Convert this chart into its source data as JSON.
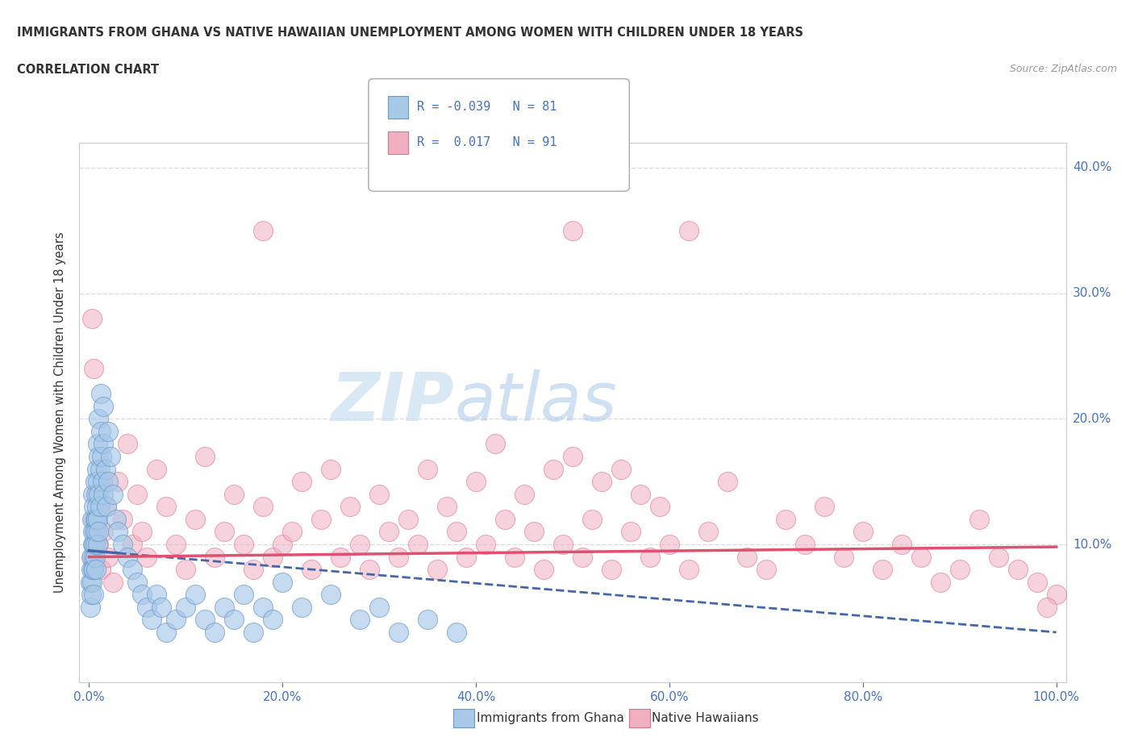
{
  "title_line1": "IMMIGRANTS FROM GHANA VS NATIVE HAWAIIAN UNEMPLOYMENT AMONG WOMEN WITH CHILDREN UNDER 18 YEARS",
  "title_line2": "CORRELATION CHART",
  "source_text": "Source: ZipAtlas.com",
  "ylabel": "Unemployment Among Women with Children Under 18 years",
  "xlim": [
    -1,
    101
  ],
  "ylim": [
    -1,
    42
  ],
  "xtick_labels": [
    "0.0%",
    "20.0%",
    "40.0%",
    "60.0%",
    "80.0%",
    "100.0%"
  ],
  "xtick_vals": [
    0,
    20,
    40,
    60,
    80,
    100
  ],
  "ytick_labels": [
    "10.0%",
    "20.0%",
    "30.0%",
    "40.0%"
  ],
  "ytick_vals": [
    10,
    20,
    30,
    40
  ],
  "legend_text1": "R = -0.039   N = 81",
  "legend_text2": "R =  0.017   N = 91",
  "color_ghana": "#a8c8e8",
  "color_ghana_edge": "#6699cc",
  "color_hawaii": "#f0b0c0",
  "color_hawaii_edge": "#e07090",
  "color_ghana_line": "#4466aa",
  "color_hawaii_line": "#e05070",
  "background_color": "#ffffff",
  "watermark_zip": "ZIP",
  "watermark_atlas": "atlas",
  "ghana_x": [
    0.1,
    0.15,
    0.2,
    0.2,
    0.25,
    0.3,
    0.3,
    0.35,
    0.4,
    0.4,
    0.4,
    0.45,
    0.5,
    0.5,
    0.5,
    0.5,
    0.55,
    0.6,
    0.6,
    0.6,
    0.65,
    0.7,
    0.7,
    0.7,
    0.75,
    0.8,
    0.8,
    0.85,
    0.9,
    0.9,
    0.9,
    1.0,
    1.0,
    1.0,
    1.0,
    1.1,
    1.1,
    1.2,
    1.2,
    1.3,
    1.4,
    1.5,
    1.5,
    1.5,
    1.7,
    1.8,
    2.0,
    2.0,
    2.2,
    2.5,
    2.8,
    3.0,
    3.5,
    4.0,
    4.5,
    5.0,
    5.5,
    6.0,
    6.5,
    7.0,
    7.5,
    8.0,
    9.0,
    10.0,
    11.0,
    12.0,
    13.0,
    14.0,
    15.0,
    16.0,
    17.0,
    18.0,
    19.0,
    20.0,
    22.0,
    25.0,
    28.0,
    30.0,
    32.0,
    35.0,
    38.0
  ],
  "ghana_y": [
    7,
    5,
    9,
    6,
    8,
    12,
    7,
    10,
    14,
    11,
    8,
    9,
    13,
    10,
    8,
    6,
    11,
    15,
    12,
    9,
    10,
    14,
    11,
    8,
    12,
    16,
    13,
    10,
    18,
    15,
    12,
    20,
    17,
    14,
    11,
    16,
    13,
    22,
    19,
    17,
    15,
    21,
    18,
    14,
    16,
    13,
    19,
    15,
    17,
    14,
    12,
    11,
    10,
    9,
    8,
    7,
    6,
    5,
    4,
    6,
    5,
    3,
    4,
    5,
    6,
    4,
    3,
    5,
    4,
    6,
    3,
    5,
    4,
    7,
    5,
    6,
    4,
    5,
    3,
    4,
    3
  ],
  "hawaii_x": [
    0.3,
    0.5,
    0.8,
    1.0,
    1.2,
    1.5,
    1.8,
    2.0,
    2.5,
    3.0,
    3.5,
    4.0,
    4.5,
    5.0,
    5.5,
    6.0,
    7.0,
    8.0,
    9.0,
    10.0,
    11.0,
    12.0,
    13.0,
    14.0,
    15.0,
    16.0,
    17.0,
    18.0,
    19.0,
    20.0,
    21.0,
    22.0,
    23.0,
    24.0,
    25.0,
    26.0,
    27.0,
    28.0,
    29.0,
    30.0,
    31.0,
    32.0,
    33.0,
    34.0,
    35.0,
    36.0,
    37.0,
    38.0,
    39.0,
    40.0,
    41.0,
    42.0,
    43.0,
    44.0,
    45.0,
    46.0,
    47.0,
    48.0,
    49.0,
    50.0,
    51.0,
    52.0,
    53.0,
    54.0,
    55.0,
    56.0,
    57.0,
    58.0,
    59.0,
    60.0,
    62.0,
    64.0,
    66.0,
    68.0,
    70.0,
    72.0,
    74.0,
    76.0,
    78.0,
    80.0,
    82.0,
    84.0,
    86.0,
    88.0,
    90.0,
    92.0,
    94.0,
    96.0,
    98.0,
    100.0,
    99.0
  ],
  "hawaii_y": [
    9,
    12,
    14,
    10,
    8,
    11,
    13,
    9,
    7,
    15,
    12,
    18,
    10,
    14,
    11,
    9,
    16,
    13,
    10,
    8,
    12,
    17,
    9,
    11,
    14,
    10,
    8,
    13,
    9,
    10,
    11,
    15,
    8,
    12,
    16,
    9,
    13,
    10,
    8,
    14,
    11,
    9,
    12,
    10,
    16,
    8,
    13,
    11,
    9,
    15,
    10,
    18,
    12,
    9,
    14,
    11,
    8,
    16,
    10,
    17,
    9,
    12,
    15,
    8,
    16,
    11,
    14,
    9,
    13,
    10,
    8,
    11,
    15,
    9,
    8,
    12,
    10,
    13,
    9,
    11,
    8,
    10,
    9,
    7,
    8,
    12,
    9,
    8,
    7,
    6,
    5
  ],
  "hawaii_outliers_x": [
    18.0,
    50.0,
    62.0,
    0.3,
    0.5
  ],
  "hawaii_outliers_y": [
    35,
    35,
    35,
    28,
    24
  ],
  "ghana_line_x0": 0,
  "ghana_line_x1": 100,
  "ghana_line_y0": 9.5,
  "ghana_line_y1": 3.0,
  "hawaii_line_x0": 0,
  "hawaii_line_x1": 100,
  "hawaii_line_y0": 9.0,
  "hawaii_line_y1": 9.8
}
